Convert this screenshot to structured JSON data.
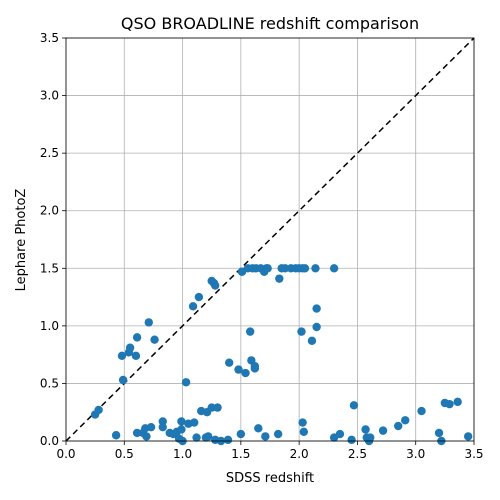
{
  "chart_data": {
    "type": "scatter",
    "title": "QSO BROADLINE redshift comparison",
    "xlabel": "SDSS redshift",
    "ylabel": "Lephare PhotoZ",
    "xlim": [
      0,
      3.5
    ],
    "ylim": [
      0,
      3.5
    ],
    "xticks": [
      "0.0",
      "0.5",
      "1.0",
      "1.5",
      "2.0",
      "2.5",
      "3.0",
      "3.5"
    ],
    "yticks": [
      "0.0",
      "0.5",
      "1.0",
      "1.5",
      "2.0",
      "2.5",
      "3.0",
      "3.5"
    ],
    "grid": true,
    "reference_line": "y = x",
    "marker_color": "#1f77b4",
    "points": [
      [
        0.25,
        0.23
      ],
      [
        0.28,
        0.27
      ],
      [
        0.43,
        0.05
      ],
      [
        0.48,
        0.74
      ],
      [
        0.49,
        0.53
      ],
      [
        0.54,
        0.77
      ],
      [
        0.55,
        0.81
      ],
      [
        0.6,
        0.74
      ],
      [
        0.61,
        0.9
      ],
      [
        0.61,
        0.07
      ],
      [
        0.66,
        0.07
      ],
      [
        0.68,
        0.11
      ],
      [
        0.69,
        0.04
      ],
      [
        0.71,
        1.03
      ],
      [
        0.73,
        0.12
      ],
      [
        0.76,
        0.88
      ],
      [
        0.83,
        0.17
      ],
      [
        0.83,
        0.12
      ],
      [
        0.89,
        0.07
      ],
      [
        0.92,
        0.06
      ],
      [
        0.95,
        0.08
      ],
      [
        0.97,
        0.02
      ],
      [
        0.99,
        0.17
      ],
      [
        0.99,
        0.1
      ],
      [
        1.0,
        0.0
      ],
      [
        1.03,
        0.51
      ],
      [
        1.05,
        0.15
      ],
      [
        1.09,
        1.17
      ],
      [
        1.1,
        0.16
      ],
      [
        1.12,
        0.03
      ],
      [
        1.14,
        1.25
      ],
      [
        1.16,
        0.26
      ],
      [
        1.2,
        0.03
      ],
      [
        1.21,
        0.25
      ],
      [
        1.22,
        0.04
      ],
      [
        1.25,
        1.39
      ],
      [
        1.25,
        0.29
      ],
      [
        1.27,
        1.37
      ],
      [
        1.28,
        1.35
      ],
      [
        1.28,
        0.01
      ],
      [
        1.3,
        0.29
      ],
      [
        1.33,
        0.0
      ],
      [
        1.39,
        0.01
      ],
      [
        1.4,
        0.68
      ],
      [
        1.48,
        0.62
      ],
      [
        1.5,
        0.06
      ],
      [
        1.51,
        1.47
      ],
      [
        1.54,
        0.59
      ],
      [
        1.56,
        1.5
      ],
      [
        1.58,
        0.95
      ],
      [
        1.59,
        0.7
      ],
      [
        1.6,
        1.5
      ],
      [
        1.62,
        0.63
      ],
      [
        1.62,
        0.65
      ],
      [
        1.63,
        1.5
      ],
      [
        1.65,
        0.11
      ],
      [
        1.67,
        1.5
      ],
      [
        1.7,
        1.47
      ],
      [
        1.71,
        0.04
      ],
      [
        1.72,
        1.5
      ],
      [
        1.73,
        1.5
      ],
      [
        1.82,
        0.06
      ],
      [
        1.83,
        1.41
      ],
      [
        1.85,
        1.5
      ],
      [
        1.88,
        1.5
      ],
      [
        1.93,
        1.5
      ],
      [
        1.97,
        1.5
      ],
      [
        2.0,
        1.5
      ],
      [
        2.02,
        0.95
      ],
      [
        2.03,
        1.5
      ],
      [
        2.03,
        0.16
      ],
      [
        2.04,
        0.08
      ],
      [
        2.05,
        1.5
      ],
      [
        2.11,
        0.87
      ],
      [
        2.14,
        1.5
      ],
      [
        2.15,
        0.99
      ],
      [
        2.15,
        1.15
      ],
      [
        2.3,
        1.5
      ],
      [
        2.3,
        0.03
      ],
      [
        2.35,
        0.06
      ],
      [
        2.45,
        0.01
      ],
      [
        2.47,
        0.31
      ],
      [
        2.57,
        0.1
      ],
      [
        2.58,
        0.03
      ],
      [
        2.6,
        0.0
      ],
      [
        2.61,
        0.03
      ],
      [
        2.72,
        0.09
      ],
      [
        2.85,
        0.13
      ],
      [
        2.91,
        0.18
      ],
      [
        3.05,
        0.26
      ],
      [
        3.2,
        0.07
      ],
      [
        3.22,
        0.0
      ],
      [
        3.25,
        0.33
      ],
      [
        3.29,
        0.32
      ],
      [
        3.36,
        0.34
      ],
      [
        3.45,
        0.04
      ]
    ]
  }
}
